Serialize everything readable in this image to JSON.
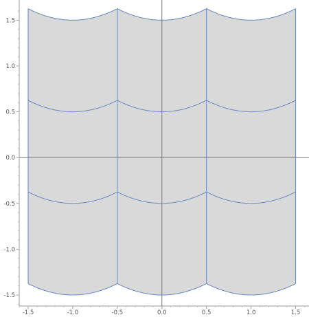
{
  "chart_data": {
    "type": "area",
    "title": "",
    "xlabel": "",
    "ylabel": "",
    "xlim": [
      -1.6,
      1.65
    ],
    "ylim": [
      -1.62,
      1.72
    ],
    "x_ticks": [
      -1.5,
      -1.0,
      -0.5,
      0.0,
      0.5,
      1.0,
      1.5
    ],
    "x_tick_labels": [
      "-1.5",
      "-1.0",
      "-0.5",
      "0.0",
      "0.5",
      "1.0",
      "1.5"
    ],
    "y_ticks": [
      -1.5,
      -1.0,
      -0.5,
      0.0,
      0.5,
      1.0,
      1.5
    ],
    "y_tick_labels": [
      "-1.5",
      "-1.0",
      "-0.5",
      "0.0",
      "0.5",
      "1.0",
      "1.5"
    ],
    "grid": false,
    "region": {
      "x_range": [
        -1.5,
        1.5
      ],
      "y_range": [
        -1.375,
        1.625
      ],
      "fill_color": "#d9d9d9",
      "edge_color": "#6f8fc0"
    },
    "cell_columns": [
      [
        -1.5,
        -0.5
      ],
      [
        -0.5,
        0.5
      ],
      [
        0.5,
        1.5
      ]
    ],
    "vertical_boundaries_x": [
      -0.5,
      0.5
    ],
    "arc_levels": [
      -1.5,
      -0.5,
      0.5,
      1.5
    ],
    "arc_depth": 0.125,
    "axis_color": "#777777"
  }
}
